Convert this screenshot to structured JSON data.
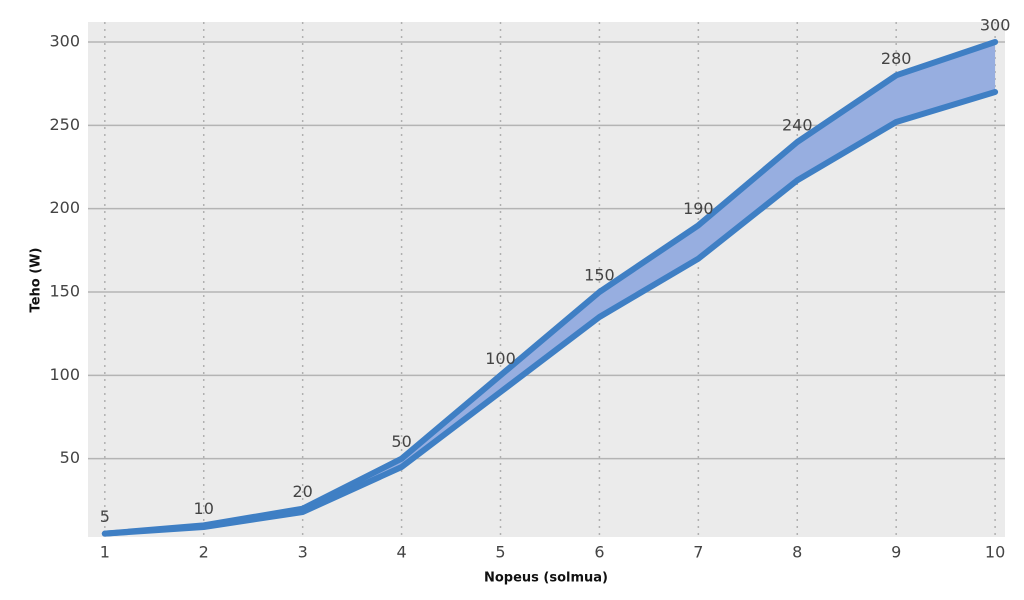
{
  "chart_data": {
    "type": "line",
    "x_label": "Nopeus (solmua)",
    "y_label": "Teho (W)",
    "x": [
      1,
      2,
      3,
      4,
      5,
      6,
      7,
      8,
      9,
      10
    ],
    "series": [
      {
        "color": "#3f7fc4",
        "values": [
          5,
          10,
          20,
          50,
          100,
          150,
          190,
          240,
          280,
          300
        ]
      },
      {
        "color": "#3f7fc4",
        "values": [
          5,
          9,
          18,
          45,
          90,
          135,
          170,
          217,
          252,
          270
        ]
      }
    ],
    "fill_between": true,
    "fill_color": "#97aee0",
    "data_labels": true,
    "xlim": [
      0.83,
      10.1
    ],
    "xticks": [
      1,
      2,
      3,
      4,
      5,
      6,
      7,
      8,
      9,
      10
    ],
    "ylim": [
      3,
      312
    ],
    "yticks": [
      50,
      100,
      150,
      200,
      250,
      300
    ],
    "grid": true
  }
}
